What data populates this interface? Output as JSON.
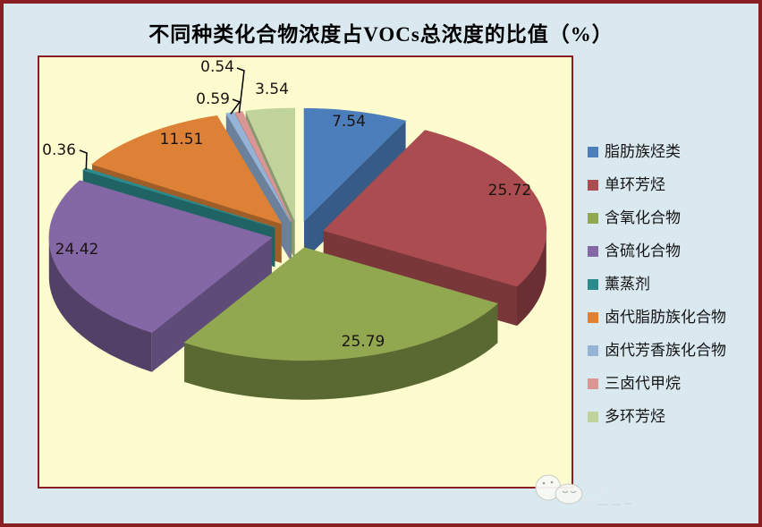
{
  "title": "不同种类化合物浓度占VOCs总浓度的比值（%）",
  "chart_data": {
    "type": "pie",
    "style": "3d-exploded",
    "unit": "%",
    "title": "不同种类化合物浓度占VOCs总浓度的比值（%）",
    "legend_position": "right",
    "data_labels": "value",
    "series": [
      {
        "label": "脂肪族烃类",
        "value": 7.54,
        "color": "#4C7EBB"
      },
      {
        "label": "单环芳烃",
        "value": 25.72,
        "color": "#AA4C50"
      },
      {
        "label": "含氧化合物",
        "value": 25.79,
        "color": "#91A851"
      },
      {
        "label": "含硫化合物",
        "value": 24.42,
        "color": "#8468A6"
      },
      {
        "label": "薰蒸剂",
        "value": 0.36,
        "color": "#2D8A8C"
      },
      {
        "label": "卤代脂肪族化合物",
        "value": 11.51,
        "color": "#DD8137"
      },
      {
        "label": "卤代芳香族化合物",
        "value": 0.59,
        "color": "#95B3D7"
      },
      {
        "label": "三卤代甲烷",
        "value": 0.54,
        "color": "#D99694"
      },
      {
        "label": "多环芳烃",
        "value": 3.54,
        "color": "#C0D39B"
      }
    ]
  },
  "colors": {
    "page_background": "#DAE8F0",
    "frame_border": "#8B2024",
    "plot_background": "#FDFCCE",
    "plot_border": "#8B2024",
    "title_text": "#000000",
    "data_label_text": "#1A1310",
    "legend_text": "#141414"
  },
  "icons": {
    "watermark": "smiley-sticker"
  }
}
